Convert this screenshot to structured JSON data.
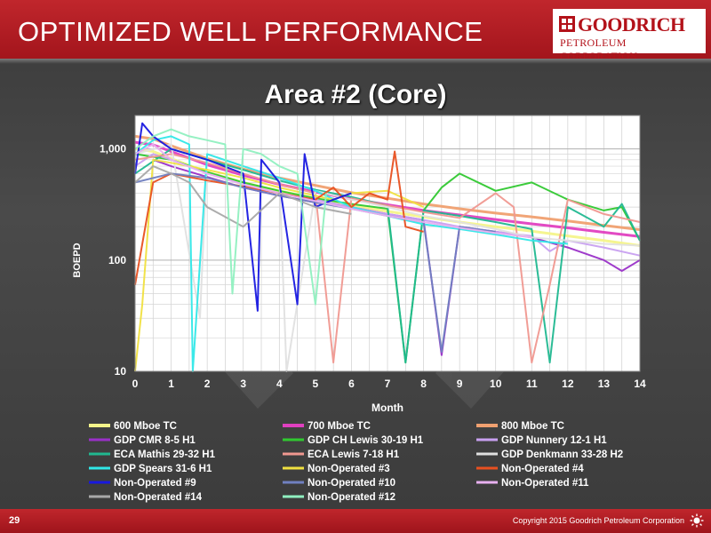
{
  "header": {
    "title": "OPTIMIZED WELL PERFORMANCE",
    "logo_name": "GOODRICH",
    "logo_sub": "PETROLEUM CORPORATION"
  },
  "colors": {
    "header_red": "#b3121a",
    "background": "#404040"
  },
  "chart_data": {
    "type": "line",
    "title": "Area #2 (Core)",
    "xlabel": "Month",
    "ylabel": "BOEPD",
    "y_scale": "log",
    "xlim": [
      0,
      14
    ],
    "ylim": [
      10,
      2000
    ],
    "x_ticks": [
      "0",
      "1",
      "2",
      "3",
      "4",
      "5",
      "6",
      "7",
      "8",
      "9",
      "10",
      "11",
      "12",
      "13",
      "14"
    ],
    "y_ticks": [
      {
        "value": 10,
        "label": "10"
      },
      {
        "value": 100,
        "label": "100"
      },
      {
        "value": 1000,
        "label": "1,000"
      }
    ],
    "grid": true,
    "legend_position": "bottom",
    "series": [
      {
        "name": "600 Mboe TC",
        "color": "#f4f48a",
        "type_curve": true,
        "x": [
          0,
          0.5,
          1,
          2,
          3,
          4,
          5,
          6,
          7,
          8,
          9,
          10,
          11,
          12,
          13,
          14
        ],
        "y": [
          1000,
          950,
          820,
          620,
          500,
          420,
          360,
          310,
          275,
          245,
          220,
          200,
          182,
          165,
          150,
          135
        ]
      },
      {
        "name": "700 Mboe TC",
        "color": "#e040c0",
        "type_curve": true,
        "x": [
          0,
          0.5,
          1,
          2,
          3,
          4,
          5,
          6,
          7,
          8,
          9,
          10,
          11,
          12,
          13,
          14
        ],
        "y": [
          1150,
          1090,
          950,
          720,
          580,
          480,
          410,
          355,
          315,
          280,
          255,
          232,
          212,
          195,
          178,
          163
        ]
      },
      {
        "name": "800 Mboe TC",
        "color": "#f0a070",
        "type_curve": true,
        "x": [
          0,
          0.5,
          1,
          2,
          3,
          4,
          5,
          6,
          7,
          8,
          9,
          10,
          11,
          12,
          13,
          14
        ],
        "y": [
          1300,
          1230,
          1070,
          820,
          660,
          550,
          470,
          405,
          360,
          320,
          290,
          265,
          245,
          225,
          205,
          188
        ]
      },
      {
        "name": "GDP CMR 8-5 H1",
        "color": "#9a30c8",
        "x": [
          0.5,
          1,
          2,
          3,
          4,
          5,
          6,
          7,
          8,
          8.5,
          9,
          10,
          11,
          12,
          13,
          13.5,
          14
        ],
        "y": [
          800,
          700,
          560,
          450,
          380,
          330,
          300,
          260,
          230,
          14,
          200,
          180,
          160,
          130,
          100,
          80,
          100
        ]
      },
      {
        "name": "GDP CH Lewis 30-19 H1",
        "color": "#30c830",
        "x": [
          0,
          1,
          2,
          3,
          4,
          5,
          6,
          7,
          7.5,
          8,
          8.5,
          9,
          10,
          11,
          12,
          13,
          13.5,
          14
        ],
        "y": [
          900,
          800,
          620,
          500,
          420,
          360,
          320,
          290,
          12,
          280,
          450,
          600,
          420,
          500,
          350,
          280,
          300,
          150
        ]
      },
      {
        "name": "GDP Nunnery 12-1 H1",
        "color": "#c8a0f0",
        "x": [
          0,
          0.5,
          1,
          2,
          3,
          4,
          5,
          6,
          7,
          8,
          9,
          10,
          11,
          11.5,
          12,
          13,
          14
        ],
        "y": [
          700,
          900,
          800,
          600,
          480,
          400,
          350,
          300,
          260,
          230,
          200,
          180,
          165,
          120,
          150,
          130,
          110
        ]
      },
      {
        "name": "ECA Mathis 29-32 H1",
        "color": "#20b890",
        "x": [
          0,
          1,
          2,
          3,
          4,
          5,
          6,
          7,
          7.5,
          8,
          9,
          10,
          11,
          11.5,
          12,
          13,
          13.5,
          14
        ],
        "y": [
          600,
          1000,
          800,
          650,
          520,
          430,
          370,
          310,
          12,
          280,
          250,
          220,
          190,
          12,
          300,
          200,
          320,
          150
        ]
      },
      {
        "name": "ECA Lewis 7-18 H1",
        "color": "#f09890",
        "x": [
          0,
          1,
          2,
          3,
          4,
          5,
          5.5,
          6,
          7,
          8,
          9,
          10,
          10.5,
          11,
          11.5,
          12,
          13,
          14
        ],
        "y": [
          800,
          900,
          750,
          600,
          480,
          400,
          12,
          360,
          310,
          270,
          240,
          400,
          300,
          12,
          60,
          350,
          260,
          220
        ]
      },
      {
        "name": "GDP Denkmann 33-28 H2",
        "color": "#e0e0e0",
        "x": [
          0,
          1,
          1.8,
          2,
          3,
          4,
          4.2,
          5,
          6,
          7,
          8,
          9,
          10,
          11,
          12,
          13,
          14
        ],
        "y": [
          900,
          1100,
          30,
          900,
          700,
          550,
          10,
          420,
          350,
          300,
          250,
          220,
          190,
          160,
          150,
          140,
          135
        ]
      },
      {
        "name": "GDP Spears 31-6 H1",
        "color": "#30e8e8",
        "x": [
          0,
          0.5,
          1,
          1.5,
          1.6,
          2,
          3,
          4,
          5,
          6,
          7,
          8,
          9,
          10,
          11,
          12
        ],
        "y": [
          900,
          1200,
          1300,
          1100,
          10,
          900,
          700,
          550,
          420,
          300,
          250,
          210,
          190,
          170,
          150,
          140
        ]
      },
      {
        "name": "Non-Operated #3",
        "color": "#f0e040",
        "x": [
          0,
          0.2,
          0.5,
          1,
          2,
          3,
          4,
          5,
          5.5,
          6,
          7,
          8
        ],
        "y": [
          10,
          40,
          800,
          750,
          650,
          550,
          450,
          380,
          350,
          400,
          420,
          300
        ]
      },
      {
        "name": "Non-Operated #4",
        "color": "#e85020",
        "x": [
          0,
          0.5,
          1,
          2,
          3,
          4,
          5,
          5.5,
          6,
          6.5,
          7,
          7.2,
          7.5,
          8
        ],
        "y": [
          60,
          500,
          600,
          520,
          460,
          400,
          350,
          450,
          300,
          400,
          350,
          950,
          200,
          180
        ]
      },
      {
        "name": "Non-Operated #9",
        "color": "#1818e0",
        "x": [
          0,
          0.2,
          0.5,
          1,
          2,
          3,
          3.4,
          3.5,
          4,
          4.5,
          4.7,
          5,
          5.5,
          6
        ],
        "y": [
          600,
          1700,
          1300,
          1000,
          800,
          600,
          35,
          800,
          500,
          40,
          900,
          300,
          350,
          400
        ]
      },
      {
        "name": "Non-Operated #10",
        "color": "#7080c0",
        "x": [
          0,
          1,
          2,
          3,
          4,
          5,
          6,
          7,
          8,
          8.5,
          9,
          10
        ],
        "y": [
          500,
          600,
          550,
          450,
          380,
          330,
          290,
          250,
          220,
          15,
          200,
          180
        ]
      },
      {
        "name": "Non-Operated #11",
        "color": "#e8b0f0",
        "x": [
          0,
          0.5,
          1,
          2,
          3,
          4,
          5,
          6,
          7,
          8,
          9,
          10,
          11
        ],
        "y": [
          900,
          1100,
          800,
          600,
          480,
          400,
          340,
          290,
          250,
          220,
          195,
          175,
          160
        ]
      },
      {
        "name": "Non-Operated #14",
        "color": "#a8a8a8",
        "x": [
          0,
          0.5,
          1,
          1.5,
          2,
          3,
          4,
          5,
          6
        ],
        "y": [
          500,
          700,
          600,
          500,
          300,
          200,
          400,
          300,
          260
        ]
      },
      {
        "name": "Non-Operated #12",
        "color": "#90f0c0",
        "x": [
          0,
          0.5,
          1,
          1.5,
          2,
          2.5,
          2.7,
          3,
          3.5,
          4,
          4.5,
          5,
          5.3
        ],
        "y": [
          1000,
          1300,
          1500,
          1300,
          1200,
          1100,
          50,
          1000,
          900,
          700,
          600,
          40,
          400
        ]
      }
    ]
  },
  "footer": {
    "page": "29",
    "copyright": "Copyright 2015 Goodrich Petroleum Corporation"
  }
}
